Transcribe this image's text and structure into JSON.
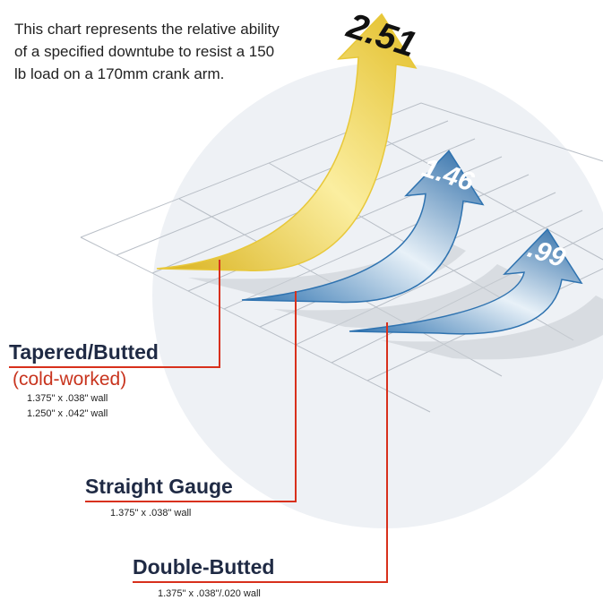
{
  "chart_data": {
    "type": "arrow",
    "description": "This chart represents the relative ability of a specified downtube to resist a 150 lb load on a 170mm crank arm.",
    "categories": [
      "Tapered/Butted",
      "Straight Gauge",
      "Double-Butted"
    ],
    "tapered_note": "(cold-worked)",
    "specs": [
      [
        "1.375\" x .038\" wall",
        "1.250\" x .042\" wall"
      ],
      [
        "1.375\" x .038\" wall"
      ],
      [
        "1.375\" x .038\"/.020 wall"
      ]
    ],
    "values": [
      2.51,
      1.46,
      0.99
    ],
    "value_labels": [
      "2.51",
      "1.46",
      ".99"
    ],
    "colors": [
      "#e8c83a",
      "#2f73b0",
      "#2f73b0"
    ]
  }
}
